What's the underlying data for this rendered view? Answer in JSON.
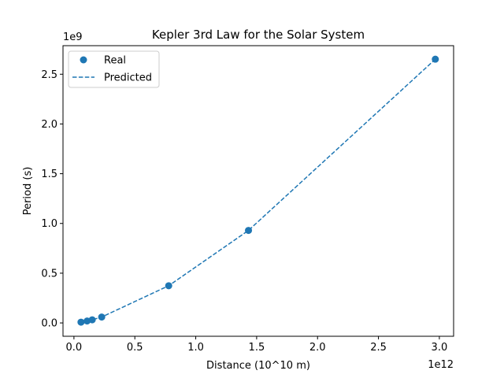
{
  "chart_data": {
    "type": "scatter",
    "title": "Kepler 3rd Law for the Solar System",
    "xlabel": "Distance (10^10 m)",
    "ylabel": "Period (s)",
    "x_offset_text": "1e12",
    "y_offset_text": "1e9",
    "xlim": [
      -0.0898,
      3.117
    ],
    "ylim": [
      -0.134,
      2.787
    ],
    "x_scale": 1000000000000.0,
    "y_scale": 1000000000.0,
    "xticks": [
      0.0,
      0.5,
      1.0,
      1.5,
      2.0,
      2.5,
      3.0
    ],
    "xtick_labels": [
      "0.0",
      "0.5",
      "1.0",
      "1.5",
      "2.0",
      "2.5",
      "3.0"
    ],
    "yticks": [
      0.0,
      0.5,
      1.0,
      1.5,
      2.0,
      2.5
    ],
    "ytick_labels": [
      "0.0",
      "0.5",
      "1.0",
      "1.5",
      "2.0",
      "2.5"
    ],
    "grid": false,
    "legend_position": "top-left",
    "color": "#1f77b4",
    "series": [
      {
        "name": "Real",
        "kind": "scatter",
        "x": [
          0.058,
          0.108,
          0.15,
          0.228,
          0.778,
          1.433,
          2.967
        ],
        "y": [
          0.0076,
          0.0194,
          0.0316,
          0.0594,
          0.374,
          0.93,
          2.651
        ]
      },
      {
        "name": "Predicted",
        "kind": "dashed-line",
        "x": [
          0.058,
          0.108,
          0.15,
          0.228,
          0.778,
          1.433,
          2.967
        ],
        "y": [
          0.0076,
          0.0194,
          0.0316,
          0.0594,
          0.374,
          0.93,
          2.651
        ]
      }
    ]
  }
}
